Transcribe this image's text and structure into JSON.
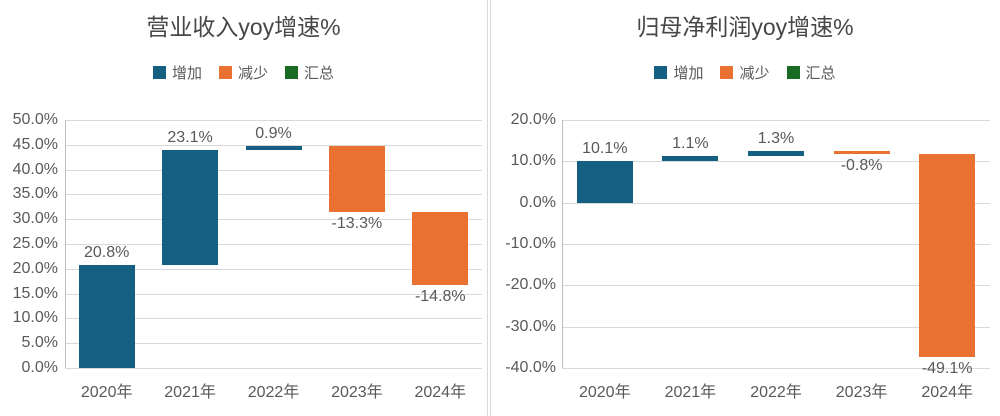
{
  "page": {
    "background": "#ffffff"
  },
  "colors": {
    "increase": "#156082",
    "decrease": "#E97132",
    "total": "#196B24",
    "gridline": "#D9D9D9",
    "axis_line": "#BFBFBF",
    "title_text": "#474747",
    "label_text": "#595959"
  },
  "chart_data": [
    {
      "type": "bar",
      "subtype": "waterfall",
      "title": "营业收入yoy增速%",
      "categories": [
        "2020年",
        "2021年",
        "2022年",
        "2023年",
        "2024年"
      ],
      "values": [
        20.8,
        23.1,
        0.9,
        -13.3,
        -14.8
      ],
      "data_labels": [
        "20.8%",
        "23.1%",
        "0.9%",
        "-13.3%",
        "-14.8%"
      ],
      "ylim": [
        0,
        50
      ],
      "ytick_labels": [
        "50.0%",
        "45.0%",
        "40.0%",
        "35.0%",
        "30.0%",
        "25.0%",
        "20.0%",
        "15.0%",
        "10.0%",
        "5.0%",
        "0.0%"
      ],
      "grid": true,
      "legend_position": "top",
      "legend_entries": [
        {
          "label": "增加",
          "role": "increase"
        },
        {
          "label": "减少",
          "role": "decrease"
        },
        {
          "label": "汇总",
          "role": "total"
        }
      ]
    },
    {
      "type": "bar",
      "subtype": "waterfall",
      "title": "归母净利润yoy增速%",
      "categories": [
        "2020年",
        "2021年",
        "2022年",
        "2023年",
        "2024年"
      ],
      "values": [
        10.1,
        1.1,
        1.3,
        -0.8,
        -49.1
      ],
      "data_labels": [
        "10.1%",
        "1.1%",
        "1.3%",
        "-0.8%",
        "-49.1%"
      ],
      "ylim": [
        -40,
        20
      ],
      "ytick_labels": [
        "20.0%",
        "10.0%",
        "0.0%",
        "-10.0%",
        "-20.0%",
        "-30.0%",
        "-40.0%"
      ],
      "grid": true,
      "legend_position": "top",
      "legend_entries": [
        {
          "label": "增加",
          "role": "increase"
        },
        {
          "label": "减少",
          "role": "decrease"
        },
        {
          "label": "汇总",
          "role": "total"
        }
      ]
    }
  ]
}
